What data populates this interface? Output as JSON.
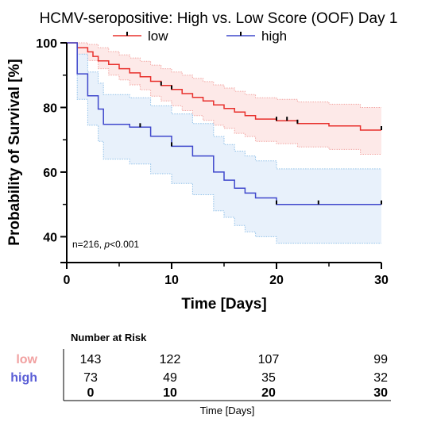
{
  "chart_data": {
    "type": "line",
    "subtype": "kaplan-meier",
    "title": "HCMV-seropositive: High vs. Low Score (OOF) Day 1",
    "xlabel": "Time [Days]",
    "ylabel": "Probability of Survival [%]",
    "xlim": [
      0,
      30
    ],
    "ylim": [
      32,
      100
    ],
    "x_ticks": [
      0,
      10,
      20,
      30
    ],
    "y_ticks": [
      40,
      60,
      80,
      100
    ],
    "annotation": {
      "prefix": "n=216, ",
      "p_symbol": "p",
      "p_value": "<0.001"
    },
    "legend_position": "top",
    "series": [
      {
        "name": "low",
        "color": "#e8302c",
        "band_fill": "#fde9e8",
        "band_stroke": "#f2a5a2",
        "survival": [
          [
            0,
            100
          ],
          [
            1,
            100
          ],
          [
            1,
            98.5
          ],
          [
            2,
            98.5
          ],
          [
            2,
            97.2
          ],
          [
            2.5,
            97.2
          ],
          [
            2.5,
            95.8
          ],
          [
            3,
            95.8
          ],
          [
            3,
            94.4
          ],
          [
            4,
            94.4
          ],
          [
            4,
            93.3
          ],
          [
            5,
            93.3
          ],
          [
            5,
            92
          ],
          [
            6,
            92
          ],
          [
            6,
            90.7
          ],
          [
            7,
            90.7
          ],
          [
            7,
            89.5
          ],
          [
            8,
            89.5
          ],
          [
            8,
            88.1
          ],
          [
            9,
            88.1
          ],
          [
            9,
            86.8
          ],
          [
            10,
            86.8
          ],
          [
            10,
            85.6
          ],
          [
            11,
            85.6
          ],
          [
            11,
            84.3
          ],
          [
            12,
            84.3
          ],
          [
            12,
            83.1
          ],
          [
            13,
            83.1
          ],
          [
            13,
            82
          ],
          [
            14,
            82
          ],
          [
            14,
            80.8
          ],
          [
            15,
            80.8
          ],
          [
            15,
            79.7
          ],
          [
            16,
            79.7
          ],
          [
            16,
            78.6
          ],
          [
            17,
            78.6
          ],
          [
            17,
            77.5
          ],
          [
            18,
            77.5
          ],
          [
            18,
            76.4
          ],
          [
            20,
            76.4
          ],
          [
            20,
            75.9
          ],
          [
            22,
            75.9
          ],
          [
            22,
            75
          ],
          [
            25,
            75
          ],
          [
            25,
            74.3
          ],
          [
            28,
            74.3
          ],
          [
            28,
            73
          ],
          [
            30,
            73
          ]
        ],
        "upper": [
          [
            0,
            100
          ],
          [
            1,
            100
          ],
          [
            1,
            100
          ],
          [
            2,
            100
          ],
          [
            2,
            99.5
          ],
          [
            3,
            99.5
          ],
          [
            3,
            98.5
          ],
          [
            4,
            98.5
          ],
          [
            4,
            97.3
          ],
          [
            5,
            97.3
          ],
          [
            5,
            96.3
          ],
          [
            6,
            96.3
          ],
          [
            6,
            95.3
          ],
          [
            7,
            95.3
          ],
          [
            7,
            94.3
          ],
          [
            8,
            94.3
          ],
          [
            8,
            93.1
          ],
          [
            9,
            93.1
          ],
          [
            9,
            92
          ],
          [
            10,
            92
          ],
          [
            10,
            91
          ],
          [
            11,
            91
          ],
          [
            11,
            90
          ],
          [
            12,
            90
          ],
          [
            12,
            89
          ],
          [
            13,
            89
          ],
          [
            13,
            88
          ],
          [
            14,
            88
          ],
          [
            14,
            87
          ],
          [
            15,
            87
          ],
          [
            15,
            86
          ],
          [
            16,
            86
          ],
          [
            16,
            85
          ],
          [
            17,
            85
          ],
          [
            17,
            84
          ],
          [
            18,
            84
          ],
          [
            18,
            83
          ],
          [
            20,
            83
          ],
          [
            20,
            82.5
          ],
          [
            22,
            82.5
          ],
          [
            22,
            81.7
          ],
          [
            25,
            81.7
          ],
          [
            25,
            81
          ],
          [
            28,
            81
          ],
          [
            28,
            80
          ],
          [
            30,
            80
          ]
        ],
        "lower": [
          [
            0,
            100
          ],
          [
            1,
            100
          ],
          [
            1,
            96
          ],
          [
            2,
            96
          ],
          [
            2,
            94.5
          ],
          [
            3,
            94.5
          ],
          [
            3,
            92
          ],
          [
            4,
            92
          ],
          [
            4,
            90
          ],
          [
            5,
            90
          ],
          [
            5,
            88.5
          ],
          [
            6,
            88.5
          ],
          [
            6,
            87
          ],
          [
            7,
            87
          ],
          [
            7,
            85.5
          ],
          [
            8,
            85.5
          ],
          [
            8,
            83.5
          ],
          [
            9,
            83.5
          ],
          [
            9,
            82
          ],
          [
            10,
            82
          ],
          [
            10,
            80.5
          ],
          [
            11,
            80.5
          ],
          [
            11,
            79
          ],
          [
            12,
            79
          ],
          [
            12,
            77.5
          ],
          [
            13,
            77.5
          ],
          [
            13,
            76
          ],
          [
            14,
            76
          ],
          [
            14,
            74.5
          ],
          [
            15,
            74.5
          ],
          [
            15,
            73.5
          ],
          [
            16,
            73.5
          ],
          [
            16,
            72
          ],
          [
            17,
            72
          ],
          [
            17,
            71
          ],
          [
            18,
            71
          ],
          [
            18,
            69.5
          ],
          [
            20,
            69.5
          ],
          [
            20,
            68.8
          ],
          [
            22,
            68.8
          ],
          [
            22,
            67.8
          ],
          [
            25,
            67.8
          ],
          [
            25,
            67
          ],
          [
            28,
            67
          ],
          [
            28,
            65.5
          ],
          [
            30,
            65.5
          ]
        ],
        "censors": [
          [
            9,
            86.8
          ],
          [
            10,
            85.6
          ],
          [
            20,
            75.9
          ],
          [
            21,
            75.9
          ],
          [
            22,
            75
          ],
          [
            30,
            73
          ]
        ]
      },
      {
        "name": "high",
        "color": "#3f48cc",
        "band_fill": "#e8f1fb",
        "band_stroke": "#8fc0e8",
        "survival": [
          [
            0,
            100
          ],
          [
            1,
            100
          ],
          [
            1,
            90.4
          ],
          [
            2,
            90.4
          ],
          [
            2,
            83.6
          ],
          [
            3,
            83.6
          ],
          [
            3,
            79.5
          ],
          [
            3.5,
            79.5
          ],
          [
            3.5,
            74.8
          ],
          [
            6,
            74.8
          ],
          [
            6,
            73.9
          ],
          [
            8,
            73.9
          ],
          [
            8,
            71.1
          ],
          [
            10,
            71.1
          ],
          [
            10,
            68
          ],
          [
            12,
            68
          ],
          [
            12,
            65
          ],
          [
            14,
            65
          ],
          [
            14,
            60
          ],
          [
            15,
            60
          ],
          [
            15,
            57.5
          ],
          [
            16,
            57.5
          ],
          [
            16,
            55
          ],
          [
            17,
            55
          ],
          [
            17,
            53.5
          ],
          [
            18,
            53.5
          ],
          [
            18,
            52
          ],
          [
            20,
            52
          ],
          [
            20,
            50
          ],
          [
            30,
            50
          ]
        ],
        "upper": [
          [
            0,
            100
          ],
          [
            1,
            100
          ],
          [
            1,
            96.5
          ],
          [
            2,
            96.5
          ],
          [
            2,
            91
          ],
          [
            3,
            91
          ],
          [
            3,
            87.5
          ],
          [
            3.5,
            87.5
          ],
          [
            3.5,
            84
          ],
          [
            6,
            84
          ],
          [
            6,
            83
          ],
          [
            8,
            83
          ],
          [
            8,
            80.5
          ],
          [
            10,
            80.5
          ],
          [
            10,
            78
          ],
          [
            12,
            78
          ],
          [
            12,
            75
          ],
          [
            14,
            75
          ],
          [
            14,
            71
          ],
          [
            15,
            71
          ],
          [
            15,
            68.5
          ],
          [
            16,
            68.5
          ],
          [
            16,
            66.5
          ],
          [
            17,
            66.5
          ],
          [
            17,
            65
          ],
          [
            18,
            65
          ],
          [
            18,
            63.5
          ],
          [
            20,
            63.5
          ],
          [
            20,
            61
          ],
          [
            30,
            61
          ]
        ],
        "lower": [
          [
            0,
            100
          ],
          [
            1,
            100
          ],
          [
            1,
            82.5
          ],
          [
            2,
            82.5
          ],
          [
            2,
            74.5
          ],
          [
            3,
            74.5
          ],
          [
            3,
            69.5
          ],
          [
            3.5,
            69.5
          ],
          [
            3.5,
            64
          ],
          [
            6,
            64
          ],
          [
            6,
            62.5
          ],
          [
            8,
            62.5
          ],
          [
            8,
            59.5
          ],
          [
            10,
            59.5
          ],
          [
            10,
            56.5
          ],
          [
            12,
            56.5
          ],
          [
            12,
            53
          ],
          [
            14,
            53
          ],
          [
            14,
            48
          ],
          [
            15,
            48
          ],
          [
            15,
            46
          ],
          [
            16,
            46
          ],
          [
            16,
            43.5
          ],
          [
            17,
            43.5
          ],
          [
            17,
            41.5
          ],
          [
            18,
            41.5
          ],
          [
            18,
            40
          ],
          [
            20,
            40
          ],
          [
            20,
            38
          ],
          [
            30,
            38
          ]
        ],
        "censors": [
          [
            7,
            73.9
          ],
          [
            10,
            68
          ],
          [
            20,
            50
          ],
          [
            24,
            50
          ],
          [
            30,
            50
          ]
        ]
      }
    ]
  },
  "risk_table": {
    "title": "Number at Risk",
    "rows": [
      {
        "label": "low",
        "color": "#e8302c",
        "values": [
          "143",
          "122",
          "107",
          "99"
        ]
      },
      {
        "label": "high",
        "color": "#3f48cc",
        "values": [
          "73",
          "49",
          "35",
          "32"
        ]
      }
    ],
    "times": [
      "0",
      "10",
      "20",
      "30"
    ],
    "xlabel": "Time [Days]"
  }
}
